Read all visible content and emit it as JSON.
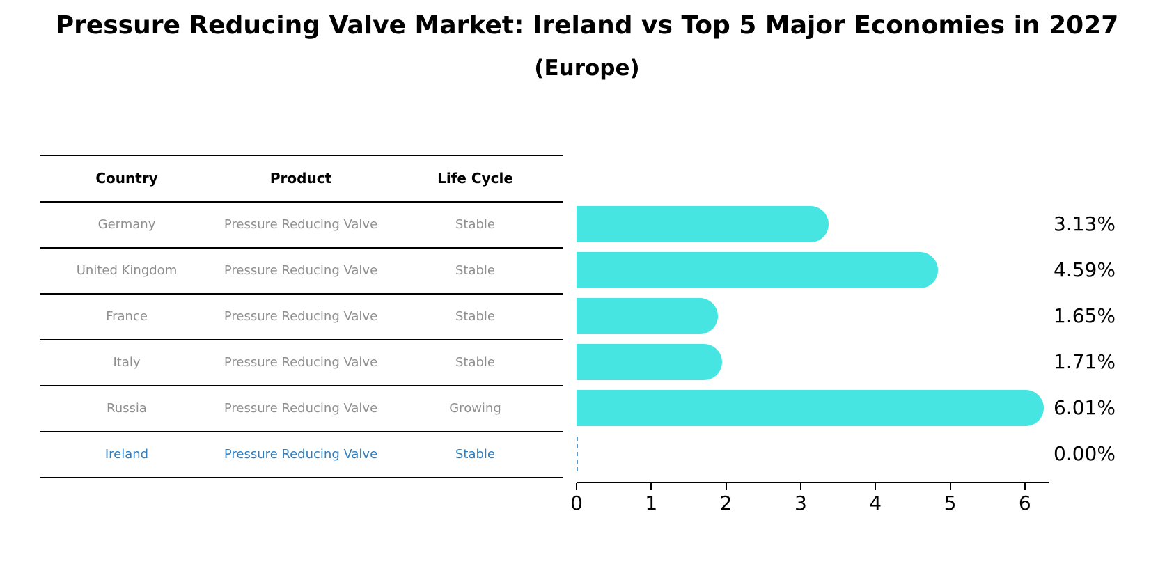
{
  "title": "Pressure Reducing Valve Market: Ireland vs Top 5 Major Economies in 2027",
  "subtitle": "(Europe)",
  "table": {
    "headers": [
      "Country",
      "Product",
      "Life Cycle"
    ],
    "rows": [
      {
        "country": "Germany",
        "product": "Pressure Reducing Valve",
        "life_cycle": "Stable",
        "highlight": false
      },
      {
        "country": "United Kingdom",
        "product": "Pressure Reducing Valve",
        "life_cycle": "Stable",
        "highlight": false
      },
      {
        "country": "France",
        "product": "Pressure Reducing Valve",
        "life_cycle": "Stable",
        "highlight": false
      },
      {
        "country": "Italy",
        "product": "Pressure Reducing Valve",
        "life_cycle": "Stable",
        "highlight": false
      },
      {
        "country": "Russia",
        "product": "Pressure Reducing Valve",
        "life_cycle": "Growing",
        "highlight": false
      },
      {
        "country": "Ireland",
        "product": "Pressure Reducing Valve",
        "life_cycle": "Stable",
        "highlight": true
      }
    ]
  },
  "chart_data": {
    "type": "bar",
    "orientation": "horizontal",
    "categories": [
      "Germany",
      "United Kingdom",
      "France",
      "Italy",
      "Russia",
      "Ireland"
    ],
    "values": [
      3.13,
      4.59,
      1.65,
      1.71,
      6.01,
      0.0
    ],
    "value_labels": [
      "3.13%",
      "4.59%",
      "1.65%",
      "1.71%",
      "6.01%",
      "0.00%"
    ],
    "x_ticks": [
      "0",
      "1",
      "2",
      "3",
      "4",
      "5",
      "6"
    ],
    "xlim": [
      0,
      6.33
    ],
    "grid": "off",
    "legend": "none",
    "bar_color": "#47e5e2",
    "highlight_text_color": "#2e7ebf",
    "zero_marker_color": "#5b9bd0",
    "zero_bar_style": "dashed-vertical-line"
  }
}
